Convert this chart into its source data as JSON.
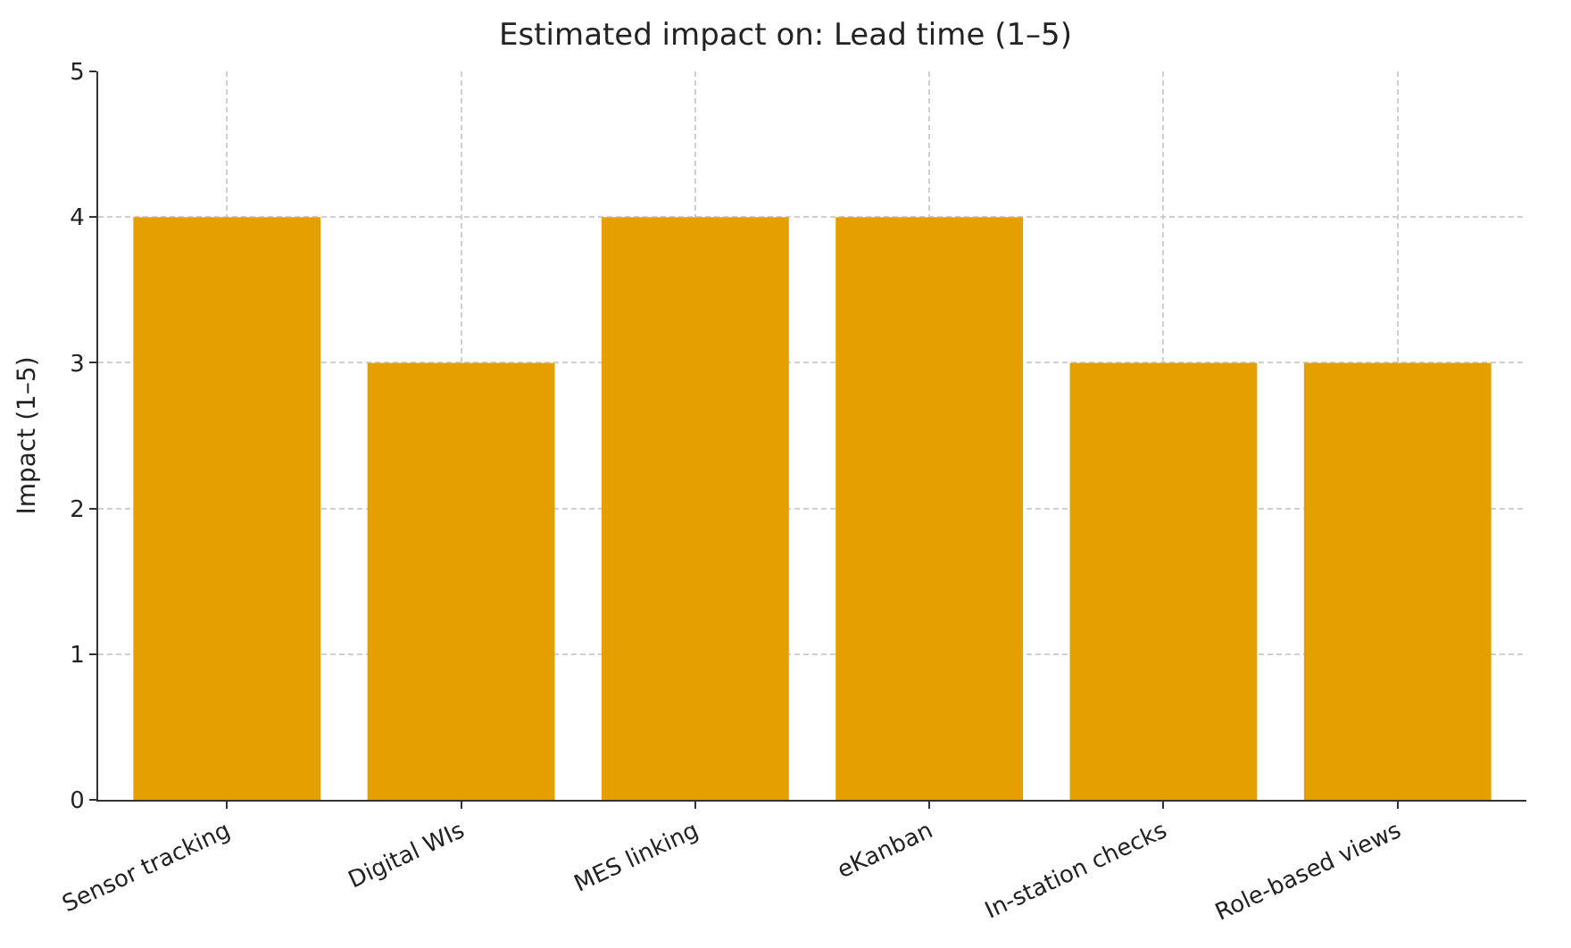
{
  "chart_data": {
    "type": "bar",
    "title": "Estimated impact on: Lead time (1–5)",
    "ylabel": "Impact (1–5)",
    "categories": [
      "Sensor tracking",
      "Digital WIs",
      "MES linking",
      "eKanban",
      "In-station checks",
      "Role-based views"
    ],
    "values": [
      4,
      3,
      4,
      4,
      3,
      3
    ],
    "color": "#e69f00",
    "ylim": [
      0,
      5
    ],
    "yticks": [
      0,
      1,
      2,
      3,
      4,
      5
    ],
    "grid": true
  }
}
